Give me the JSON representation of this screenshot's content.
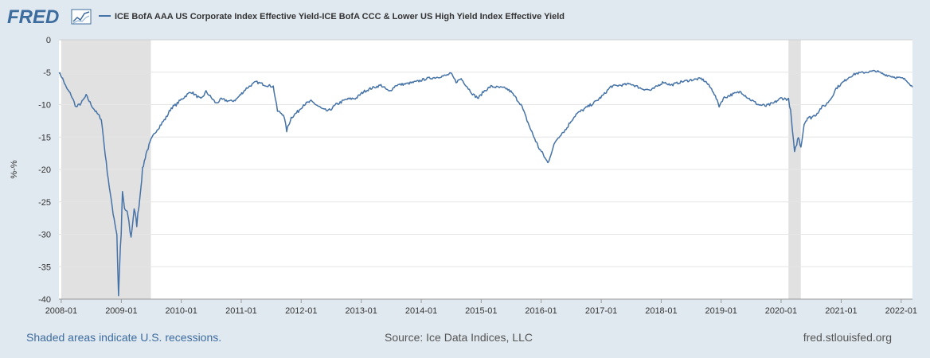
{
  "brand": {
    "name": "FRED"
  },
  "legend": {
    "label": "ICE BofA AAA US Corporate Index Effective Yield-ICE BofA CCC & Lower US High Yield Index Effective Yield"
  },
  "footer": {
    "recession_note": "Shaded areas indicate U.S. recessions.",
    "source": "Source: Ice Data Indices, LLC",
    "site": "fred.stlouisfed.org"
  },
  "colors": {
    "background": "#e1e9f0",
    "plot": "#ffffff",
    "series": "#4572a7",
    "recession": "#e1e1e1",
    "brand_blue": "#3d6c9e"
  },
  "chart_data": {
    "type": "line",
    "title": "",
    "xlabel": "",
    "ylabel": "%-%",
    "xlim": [
      "2007-12-18",
      "2022-03-11"
    ],
    "ylim": [
      -40,
      0
    ],
    "grid": true,
    "legend_position": "top-left",
    "y_ticks": [
      0,
      -5,
      -10,
      -15,
      -20,
      -25,
      -30,
      -35,
      -40
    ],
    "x_ticks": [
      "2008-01",
      "2009-01",
      "2010-01",
      "2011-01",
      "2012-01",
      "2013-01",
      "2014-01",
      "2015-01",
      "2016-01",
      "2017-01",
      "2018-01",
      "2019-01",
      "2020-01",
      "2021-01",
      "2022-01"
    ],
    "recessions": [
      {
        "start": "2008-01-01",
        "end": "2009-06-30"
      },
      {
        "start": "2020-02-15",
        "end": "2020-04-30"
      }
    ],
    "series": [
      {
        "name": "ICE BofA AAA US Corporate Index Effective Yield-ICE BofA CCC & Lower US High Yield Index Effective Yield",
        "color": "#4572a7",
        "points": [
          [
            "2007-12-18",
            -5.0
          ],
          [
            "2008-01-10",
            -6.0
          ],
          [
            "2008-02-01",
            -7.4
          ],
          [
            "2008-03-01",
            -8.5
          ],
          [
            "2008-04-01",
            -10.4
          ],
          [
            "2008-05-01",
            -9.8
          ],
          [
            "2008-06-01",
            -8.6
          ],
          [
            "2008-07-01",
            -10.0
          ],
          [
            "2008-08-01",
            -11.2
          ],
          [
            "2008-09-01",
            -12.2
          ],
          [
            "2008-10-01",
            -19.0
          ],
          [
            "2008-11-01",
            -25.0
          ],
          [
            "2008-12-05",
            -30.0
          ],
          [
            "2008-12-15",
            -39.5
          ],
          [
            "2008-12-22",
            -34.5
          ],
          [
            "2008-12-31",
            -30.0
          ],
          [
            "2009-01-08",
            -23.5
          ],
          [
            "2009-01-20",
            -26.0
          ],
          [
            "2009-02-10",
            -27.0
          ],
          [
            "2009-03-01",
            -30.5
          ],
          [
            "2009-03-20",
            -26.0
          ],
          [
            "2009-04-05",
            -28.5
          ],
          [
            "2009-04-25",
            -24.0
          ],
          [
            "2009-05-10",
            -20.0
          ],
          [
            "2009-06-01",
            -17.5
          ],
          [
            "2009-07-01",
            -15.5
          ],
          [
            "2009-08-01",
            -14.0
          ],
          [
            "2009-09-01",
            -13.0
          ],
          [
            "2009-10-01",
            -12.0
          ],
          [
            "2009-11-01",
            -10.5
          ],
          [
            "2009-12-01",
            -10.0
          ],
          [
            "2010-01-01",
            -9.2
          ],
          [
            "2010-03-01",
            -8.0
          ],
          [
            "2010-05-01",
            -9.2
          ],
          [
            "2010-06-01",
            -8.0
          ],
          [
            "2010-08-01",
            -9.8
          ],
          [
            "2010-09-01",
            -9.2
          ],
          [
            "2010-11-01",
            -9.5
          ],
          [
            "2010-12-01",
            -9.2
          ],
          [
            "2011-02-01",
            -7.5
          ],
          [
            "2011-04-01",
            -6.5
          ],
          [
            "2011-06-01",
            -7.0
          ],
          [
            "2011-07-15",
            -7.2
          ],
          [
            "2011-08-10",
            -11.0
          ],
          [
            "2011-09-15",
            -11.5
          ],
          [
            "2011-10-05",
            -14.0
          ],
          [
            "2011-11-01",
            -12.0
          ],
          [
            "2011-12-15",
            -11.0
          ],
          [
            "2012-01-15",
            -10.0
          ],
          [
            "2012-03-01",
            -9.5
          ],
          [
            "2012-04-01",
            -10.0
          ],
          [
            "2012-05-15",
            -10.8
          ],
          [
            "2012-06-15",
            -11.0
          ],
          [
            "2012-08-01",
            -10.0
          ],
          [
            "2012-10-01",
            -9.2
          ],
          [
            "2012-12-01",
            -9.0
          ],
          [
            "2013-01-15",
            -8.0
          ],
          [
            "2013-03-01",
            -7.5
          ],
          [
            "2013-05-01",
            -7.0
          ],
          [
            "2013-06-20",
            -8.0
          ],
          [
            "2013-08-01",
            -7.0
          ],
          [
            "2013-10-01",
            -6.8
          ],
          [
            "2013-12-01",
            -6.5
          ],
          [
            "2014-02-01",
            -6.0
          ],
          [
            "2014-04-01",
            -5.8
          ],
          [
            "2014-06-01",
            -5.5
          ],
          [
            "2014-07-01",
            -5.2
          ],
          [
            "2014-08-01",
            -6.5
          ],
          [
            "2014-09-01",
            -6.0
          ],
          [
            "2014-10-15",
            -7.5
          ],
          [
            "2014-11-15",
            -8.5
          ],
          [
            "2014-12-15",
            -9.0
          ],
          [
            "2015-01-15",
            -8.0
          ],
          [
            "2015-03-01",
            -7.2
          ],
          [
            "2015-06-01",
            -7.5
          ],
          [
            "2015-07-01",
            -8.0
          ],
          [
            "2015-08-01",
            -9.0
          ],
          [
            "2015-09-01",
            -10.0
          ],
          [
            "2015-10-01",
            -12.0
          ],
          [
            "2015-11-01",
            -14.0
          ],
          [
            "2015-12-15",
            -16.5
          ],
          [
            "2016-01-15",
            -17.8
          ],
          [
            "2016-02-11",
            -19.0
          ],
          [
            "2016-03-01",
            -17.5
          ],
          [
            "2016-04-01",
            -15.5
          ],
          [
            "2016-05-01",
            -14.5
          ],
          [
            "2016-06-01",
            -13.8
          ],
          [
            "2016-07-01",
            -12.5
          ],
          [
            "2016-08-01",
            -11.5
          ],
          [
            "2016-10-01",
            -10.5
          ],
          [
            "2016-12-01",
            -9.5
          ],
          [
            "2017-01-15",
            -8.5
          ],
          [
            "2017-03-01",
            -7.2
          ],
          [
            "2017-05-01",
            -7.0
          ],
          [
            "2017-07-01",
            -6.8
          ],
          [
            "2017-09-01",
            -7.5
          ],
          [
            "2017-11-01",
            -7.8
          ],
          [
            "2018-01-15",
            -6.5
          ],
          [
            "2018-03-01",
            -7.0
          ],
          [
            "2018-05-01",
            -6.5
          ],
          [
            "2018-07-01",
            -6.2
          ],
          [
            "2018-09-01",
            -6.0
          ],
          [
            "2018-10-01",
            -6.5
          ],
          [
            "2018-11-15",
            -8.0
          ],
          [
            "2018-12-20",
            -10.2
          ],
          [
            "2019-01-15",
            -9.0
          ],
          [
            "2019-03-01",
            -8.5
          ],
          [
            "2019-05-01",
            -8.0
          ],
          [
            "2019-06-15",
            -9.0
          ],
          [
            "2019-08-15",
            -10.0
          ],
          [
            "2019-10-01",
            -10.2
          ],
          [
            "2019-11-15",
            -9.8
          ],
          [
            "2020-01-01",
            -9.0
          ],
          [
            "2020-02-15",
            -9.2
          ],
          [
            "2020-02-28",
            -11.0
          ],
          [
            "2020-03-10",
            -14.0
          ],
          [
            "2020-03-23",
            -17.5
          ],
          [
            "2020-04-05",
            -16.0
          ],
          [
            "2020-04-15",
            -15.0
          ],
          [
            "2020-05-01",
            -16.5
          ],
          [
            "2020-05-20",
            -13.0
          ],
          [
            "2020-06-10",
            -12.0
          ],
          [
            "2020-07-01",
            -12.0
          ],
          [
            "2020-08-01",
            -11.5
          ],
          [
            "2020-09-01",
            -10.5
          ],
          [
            "2020-10-01",
            -10.0
          ],
          [
            "2020-11-01",
            -9.0
          ],
          [
            "2020-12-01",
            -7.5
          ],
          [
            "2021-01-01",
            -6.8
          ],
          [
            "2021-02-15",
            -5.8
          ],
          [
            "2021-04-01",
            -5.2
          ],
          [
            "2021-06-01",
            -5.0
          ],
          [
            "2021-08-01",
            -4.8
          ],
          [
            "2021-09-15",
            -5.3
          ],
          [
            "2021-10-15",
            -5.5
          ],
          [
            "2021-12-01",
            -5.8
          ],
          [
            "2022-01-15",
            -6.0
          ],
          [
            "2022-02-15",
            -6.5
          ],
          [
            "2022-03-11",
            -7.3
          ]
        ]
      }
    ]
  }
}
